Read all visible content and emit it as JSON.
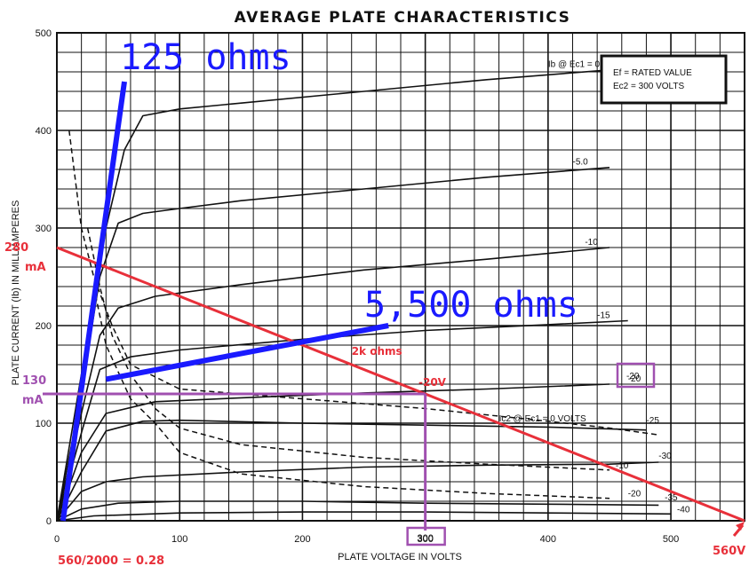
{
  "chart_data": {
    "type": "line",
    "title": "AVERAGE PLATE CHARACTERISTICS",
    "xlabel": "PLATE VOLTAGE IN VOLTS",
    "ylabel": "PLATE CURRENT (Ib) IN MILLIAMPERES",
    "xlim": [
      0,
      560
    ],
    "ylim": [
      0,
      500
    ],
    "x_ticks": [
      "0",
      "100",
      "200",
      "300",
      "400",
      "500"
    ],
    "y_ticks": [
      "0",
      "100",
      "200",
      "300",
      "400",
      "500"
    ],
    "x_tick_values": [
      0,
      100,
      200,
      300,
      400,
      500
    ],
    "y_tick_values": [
      0,
      100,
      200,
      300,
      400,
      500
    ],
    "grid": true,
    "legend": {
      "lines": [
        "Ef = RATED VALUE",
        "Ec2 = 300 VOLTS"
      ],
      "position": "top-right"
    },
    "plate_curves": [
      {
        "label": "Ib @ Ec1 = 0 VOLTS",
        "label_at": [
          400,
          463
        ],
        "points": [
          [
            0,
            0
          ],
          [
            20,
            150
          ],
          [
            40,
            300
          ],
          [
            55,
            380
          ],
          [
            70,
            415
          ],
          [
            100,
            422
          ],
          [
            150,
            428
          ],
          [
            250,
            440
          ],
          [
            350,
            452
          ],
          [
            450,
            462
          ]
        ]
      },
      {
        "label": "-5.0",
        "label_at": [
          420,
          363
        ],
        "points": [
          [
            0,
            0
          ],
          [
            20,
            130
          ],
          [
            35,
            250
          ],
          [
            50,
            305
          ],
          [
            70,
            315
          ],
          [
            100,
            320
          ],
          [
            150,
            328
          ],
          [
            250,
            340
          ],
          [
            350,
            352
          ],
          [
            450,
            362
          ]
        ]
      },
      {
        "label": "-10",
        "label_at": [
          430,
          281
        ],
        "points": [
          [
            0,
            0
          ],
          [
            20,
            110
          ],
          [
            35,
            190
          ],
          [
            50,
            218
          ],
          [
            80,
            230
          ],
          [
            150,
            242
          ],
          [
            250,
            257
          ],
          [
            350,
            268
          ],
          [
            450,
            280
          ]
        ]
      },
      {
        "label": "-15",
        "label_at": [
          440,
          206
        ],
        "points": [
          [
            0,
            0
          ],
          [
            20,
            90
          ],
          [
            35,
            155
          ],
          [
            60,
            168
          ],
          [
            100,
            175
          ],
          [
            200,
            186
          ],
          [
            300,
            195
          ],
          [
            400,
            201
          ],
          [
            465,
            205
          ]
        ]
      },
      {
        "label": "-20",
        "label_at": [
          465,
          141
        ],
        "points": [
          [
            0,
            0
          ],
          [
            20,
            70
          ],
          [
            40,
            110
          ],
          [
            80,
            122
          ],
          [
            150,
            126
          ],
          [
            250,
            131
          ],
          [
            350,
            135
          ],
          [
            450,
            140
          ]
        ]
      },
      {
        "label": "-25",
        "label_at": [
          480,
          98
        ],
        "points": [
          [
            0,
            0
          ],
          [
            20,
            50
          ],
          [
            40,
            92
          ],
          [
            70,
            102
          ],
          [
            100,
            103
          ],
          [
            200,
            100
          ],
          [
            300,
            98
          ],
          [
            400,
            96
          ],
          [
            480,
            93
          ]
        ]
      },
      {
        "label": "-30",
        "label_at": [
          490,
          62
        ],
        "points": [
          [
            0,
            0
          ],
          [
            20,
            30
          ],
          [
            40,
            40
          ],
          [
            70,
            45
          ],
          [
            150,
            50
          ],
          [
            250,
            55
          ],
          [
            350,
            57
          ],
          [
            450,
            58
          ],
          [
            490,
            60
          ]
        ]
      },
      {
        "label": "-35",
        "label_at": [
          495,
          19
        ],
        "points": [
          [
            0,
            0
          ],
          [
            20,
            12
          ],
          [
            50,
            18
          ],
          [
            100,
            20
          ],
          [
            200,
            20
          ],
          [
            300,
            18
          ],
          [
            400,
            17
          ],
          [
            490,
            16
          ]
        ]
      },
      {
        "label": "-40",
        "label_at": [
          505,
          7
        ],
        "points": [
          [
            0,
            0
          ],
          [
            30,
            5
          ],
          [
            100,
            8
          ],
          [
            200,
            9
          ],
          [
            300,
            9
          ],
          [
            400,
            8
          ],
          [
            500,
            7
          ]
        ]
      }
    ],
    "screen_grid_curves": [
      {
        "label": "Ic2 @ Ec1 = 0 VOLTS",
        "label_at": [
          360,
          100
        ],
        "points": [
          [
            10,
            400
          ],
          [
            20,
            300
          ],
          [
            30,
            250
          ],
          [
            45,
            200
          ],
          [
            60,
            160
          ],
          [
            100,
            135
          ],
          [
            200,
            125
          ],
          [
            300,
            115
          ],
          [
            400,
            102
          ],
          [
            450,
            95
          ],
          [
            490,
            88
          ]
        ]
      },
      {
        "label": "-10",
        "label_at": [
          455,
          52
        ],
        "points": [
          [
            25,
            300
          ],
          [
            35,
            240
          ],
          [
            45,
            190
          ],
          [
            60,
            150
          ],
          [
            80,
            115
          ],
          [
            100,
            95
          ],
          [
            150,
            78
          ],
          [
            250,
            65
          ],
          [
            350,
            58
          ],
          [
            450,
            52
          ]
        ]
      },
      {
        "label": "-20",
        "label_at": [
          465,
          23
        ],
        "points": [
          [
            30,
            240
          ],
          [
            40,
            180
          ],
          [
            60,
            125
          ],
          [
            80,
            100
          ],
          [
            100,
            70
          ],
          [
            150,
            48
          ],
          [
            250,
            35
          ],
          [
            350,
            28
          ],
          [
            450,
            23
          ]
        ]
      }
    ],
    "annotations": {
      "dc_load_line": {
        "label": "125 ohms",
        "points": [
          [
            5,
            0
          ],
          [
            55,
            450
          ]
        ]
      },
      "ac_load_line": {
        "label": "5,500 ohms",
        "points": [
          [
            40,
            145
          ],
          [
            270,
            200
          ]
        ]
      },
      "load_line": {
        "label": "2k ohms",
        "label_at": [
          240,
          170
        ],
        "points": [
          [
            0,
            280
          ],
          [
            560,
            0
          ]
        ]
      },
      "q_point": {
        "x": 300,
        "y": 130,
        "x_label": "300",
        "y_label_top": "130",
        "y_label_bottom": "mA",
        "bias_label": "-20V",
        "boxed_curve_label": "-20"
      },
      "y_intercept_top": "280",
      "y_intercept_bottom": "mA",
      "x_intercept": "560V",
      "formula": "560/2000 = 0.28"
    }
  }
}
